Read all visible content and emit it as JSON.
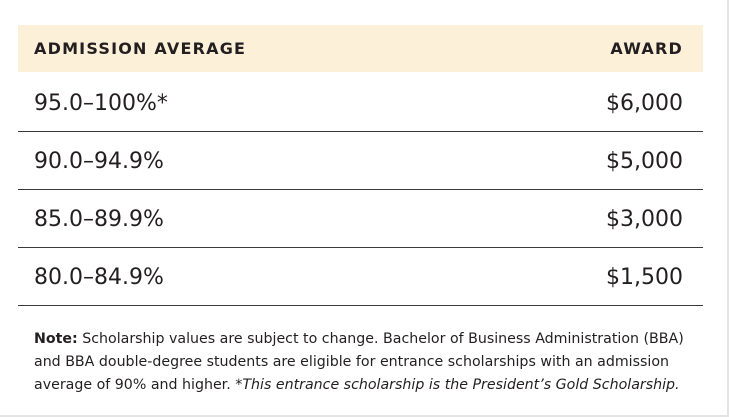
{
  "table": {
    "header": [
      "ADMISSION AVERAGE",
      "AWARD"
    ],
    "rows": [
      [
        "95.0–100%*",
        "$6,000"
      ],
      [
        "90.0–94.9%",
        "$5,000"
      ],
      [
        "85.0–89.9%",
        "$3,000"
      ],
      [
        "80.0–84.9%",
        "$1,500"
      ]
    ]
  },
  "note": {
    "label": "Note:",
    "text": "Scholarship values are subject to change. Bachelor of Business Administration (BBA) and BBA double-degree students are eligible for entrance scholarships with an admission average of 90% and higher.",
    "italic": "*This entrance scholarship is the President’s Gold Scholarship."
  }
}
